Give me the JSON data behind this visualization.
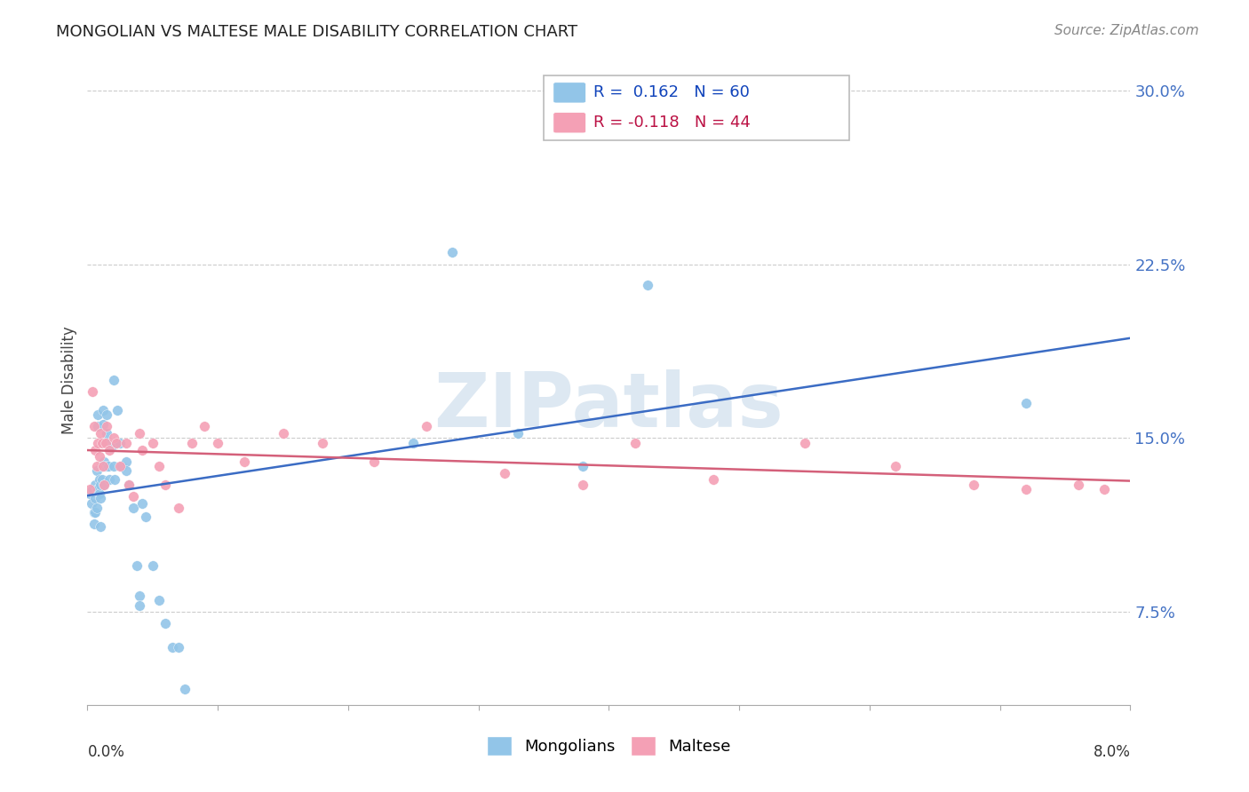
{
  "title": "MONGOLIAN VS MALTESE MALE DISABILITY CORRELATION CHART",
  "source": "Source: ZipAtlas.com",
  "ylabel": "Male Disability",
  "right_yticks": [
    7.5,
    15.0,
    22.5,
    30.0
  ],
  "x_min": 0.0,
  "x_max": 0.08,
  "y_min": 0.035,
  "y_max": 0.315,
  "mongolian_color": "#92C5E8",
  "maltese_color": "#F4A0B5",
  "mongolian_line_color": "#3B6CC4",
  "maltese_line_color": "#D4607A",
  "background_color": "#FFFFFF",
  "grid_color": "#CCCCCC",
  "watermark_text": "ZIPatlas",
  "watermark_color": "#DDE8F2",
  "mongolian_x": [
    0.0002,
    0.0003,
    0.0004,
    0.0005,
    0.0005,
    0.0006,
    0.0006,
    0.0006,
    0.0007,
    0.0007,
    0.0007,
    0.0008,
    0.0008,
    0.0008,
    0.0009,
    0.0009,
    0.001,
    0.001,
    0.001,
    0.0011,
    0.0011,
    0.0012,
    0.0012,
    0.0013,
    0.0013,
    0.0014,
    0.0014,
    0.0015,
    0.0015,
    0.0016,
    0.0017,
    0.0018,
    0.002,
    0.002,
    0.0021,
    0.0022,
    0.0023,
    0.0025,
    0.0026,
    0.003,
    0.003,
    0.0032,
    0.0035,
    0.0038,
    0.004,
    0.004,
    0.0042,
    0.0045,
    0.005,
    0.0055,
    0.006,
    0.0065,
    0.007,
    0.0075,
    0.025,
    0.028,
    0.033,
    0.038,
    0.043,
    0.072
  ],
  "mongolian_y": [
    0.126,
    0.122,
    0.128,
    0.118,
    0.113,
    0.13,
    0.124,
    0.118,
    0.136,
    0.128,
    0.12,
    0.16,
    0.155,
    0.128,
    0.132,
    0.126,
    0.13,
    0.124,
    0.112,
    0.138,
    0.132,
    0.162,
    0.156,
    0.14,
    0.13,
    0.148,
    0.138,
    0.16,
    0.152,
    0.138,
    0.132,
    0.146,
    0.175,
    0.138,
    0.132,
    0.148,
    0.162,
    0.148,
    0.138,
    0.14,
    0.136,
    0.13,
    0.12,
    0.095,
    0.082,
    0.078,
    0.122,
    0.116,
    0.095,
    0.08,
    0.07,
    0.06,
    0.06,
    0.042,
    0.148,
    0.23,
    0.152,
    0.138,
    0.216,
    0.165
  ],
  "maltese_x": [
    0.0002,
    0.0004,
    0.0005,
    0.0006,
    0.0007,
    0.0008,
    0.0009,
    0.001,
    0.0011,
    0.0012,
    0.0013,
    0.0014,
    0.0015,
    0.0017,
    0.002,
    0.0022,
    0.0025,
    0.003,
    0.0032,
    0.0035,
    0.004,
    0.0042,
    0.005,
    0.0055,
    0.006,
    0.007,
    0.008,
    0.009,
    0.01,
    0.012,
    0.015,
    0.018,
    0.022,
    0.026,
    0.032,
    0.038,
    0.042,
    0.048,
    0.055,
    0.062,
    0.068,
    0.072,
    0.076,
    0.078
  ],
  "maltese_y": [
    0.128,
    0.17,
    0.155,
    0.145,
    0.138,
    0.148,
    0.142,
    0.152,
    0.148,
    0.138,
    0.13,
    0.148,
    0.155,
    0.145,
    0.15,
    0.148,
    0.138,
    0.148,
    0.13,
    0.125,
    0.152,
    0.145,
    0.148,
    0.138,
    0.13,
    0.12,
    0.148,
    0.155,
    0.148,
    0.14,
    0.152,
    0.148,
    0.14,
    0.155,
    0.135,
    0.13,
    0.148,
    0.132,
    0.148,
    0.138,
    0.13,
    0.128,
    0.13,
    0.128
  ]
}
